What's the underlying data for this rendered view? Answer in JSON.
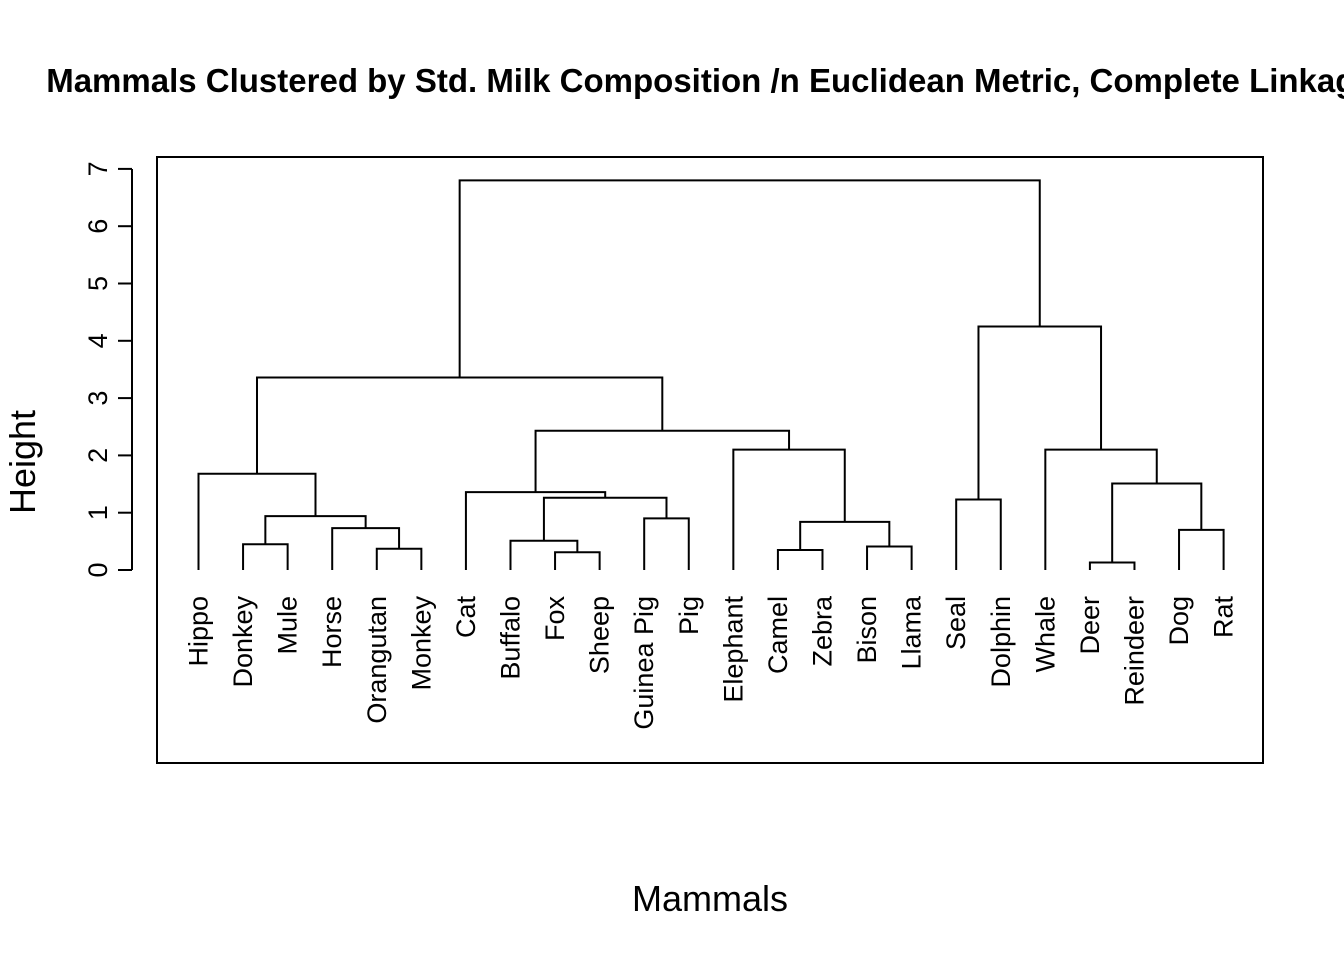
{
  "chart_data": {
    "type": "dendrogram",
    "title": "Mammals Clustered by Std. Milk Composition /n Euclidean Metric, Complete Linkage",
    "xlabel": "Mammals",
    "ylabel": "Height",
    "ylim": [
      0,
      7
    ],
    "yticks": [
      "0",
      "1",
      "2",
      "3",
      "4",
      "5",
      "6",
      "7"
    ],
    "leaves": [
      "Hippo",
      "Donkey",
      "Mule",
      "Horse",
      "Orangutan",
      "Monkey",
      "Cat",
      "Buffalo",
      "Fox",
      "Sheep",
      "Guinea Pig",
      "Pig",
      "Elephant",
      "Camel",
      "Zebra",
      "Bison",
      "Llama",
      "Seal",
      "Dolphin",
      "Whale",
      "Deer",
      "Reindeer",
      "Dog",
      "Rat"
    ],
    "merges": [
      {
        "left": "Donkey",
        "right": "Mule",
        "height": 0.45
      },
      {
        "left": "Orangutan",
        "right": "Monkey",
        "height": 0.37
      },
      {
        "left": "Horse",
        "right": [
          "Orangutan",
          "Monkey"
        ],
        "height": 0.73
      },
      {
        "left": [
          "Donkey",
          "Mule"
        ],
        "right": [
          "Horse",
          "Orangutan",
          "Monkey"
        ],
        "height": 0.94
      },
      {
        "left": "Hippo",
        "right": [
          "Donkey",
          "Mule",
          "Horse",
          "Orangutan",
          "Monkey"
        ],
        "height": 1.68
      },
      {
        "left": "Fox",
        "right": "Sheep",
        "height": 0.31
      },
      {
        "left": "Buffalo",
        "right": [
          "Fox",
          "Sheep"
        ],
        "height": 0.51
      },
      {
        "left": "Guinea Pig",
        "right": "Pig",
        "height": 0.9
      },
      {
        "left": [
          "Buffalo",
          "Fox",
          "Sheep"
        ],
        "right": [
          "Guinea Pig",
          "Pig"
        ],
        "height": 1.26
      },
      {
        "left": "Cat",
        "right": [
          "Buffalo",
          "Fox",
          "Sheep",
          "Guinea Pig",
          "Pig"
        ],
        "height": 1.36
      },
      {
        "left": "Camel",
        "right": "Zebra",
        "height": 0.35
      },
      {
        "left": "Bison",
        "right": "Llama",
        "height": 0.41
      },
      {
        "left": [
          "Camel",
          "Zebra"
        ],
        "right": [
          "Bison",
          "Llama"
        ],
        "height": 0.84
      },
      {
        "left": "Elephant",
        "right": [
          "Camel",
          "Zebra",
          "Bison",
          "Llama"
        ],
        "height": 2.1
      },
      {
        "left": [
          "Cat",
          "Buffalo",
          "Fox",
          "Sheep",
          "Guinea Pig",
          "Pig"
        ],
        "right": [
          "Elephant",
          "Camel",
          "Zebra",
          "Bison",
          "Llama"
        ],
        "height": 2.43
      },
      {
        "left": [
          "Hippo",
          "Donkey",
          "Mule",
          "Horse",
          "Orangutan",
          "Monkey"
        ],
        "right": [
          "Cat",
          "Buffalo",
          "Fox",
          "Sheep",
          "Guinea Pig",
          "Pig",
          "Elephant",
          "Camel",
          "Zebra",
          "Bison",
          "Llama"
        ],
        "height": 3.36
      },
      {
        "left": "Seal",
        "right": "Dolphin",
        "height": 1.23
      },
      {
        "left": "Deer",
        "right": "Reindeer",
        "height": 0.13
      },
      {
        "left": "Dog",
        "right": "Rat",
        "height": 0.7
      },
      {
        "left": [
          "Deer",
          "Reindeer"
        ],
        "right": [
          "Dog",
          "Rat"
        ],
        "height": 1.51
      },
      {
        "left": "Whale",
        "right": [
          "Deer",
          "Reindeer",
          "Dog",
          "Rat"
        ],
        "height": 2.1
      },
      {
        "left": [
          "Seal",
          "Dolphin"
        ],
        "right": [
          "Whale",
          "Deer",
          "Reindeer",
          "Dog",
          "Rat"
        ],
        "height": 4.25
      },
      {
        "left": [
          "Hippo",
          "Donkey",
          "Mule",
          "Horse",
          "Orangutan",
          "Monkey",
          "Cat",
          "Buffalo",
          "Fox",
          "Sheep",
          "Guinea Pig",
          "Pig",
          "Elephant",
          "Camel",
          "Zebra",
          "Bison",
          "Llama"
        ],
        "right": [
          "Seal",
          "Dolphin",
          "Whale",
          "Deer",
          "Reindeer",
          "Dog",
          "Rat"
        ],
        "height": 6.8
      }
    ],
    "grid": false,
    "legend": "none",
    "line_color": "#000000"
  }
}
